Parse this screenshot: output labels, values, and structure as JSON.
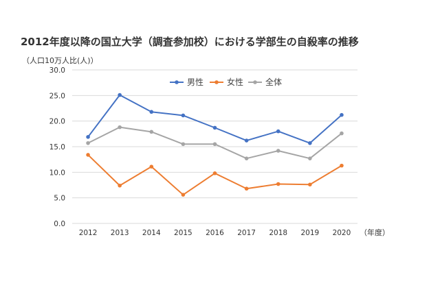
{
  "chart_data": {
    "type": "line",
    "title": "2012年度以降の国立大学（調査参加校）における学部生の自殺率の推移",
    "ylabel": "（人口10万人比(人)）",
    "xlabel": "（年度）",
    "ylim": [
      0,
      30
    ],
    "yticks": [
      "0.0",
      "5.0",
      "10.0",
      "15.0",
      "20.0",
      "25.0",
      "30.0"
    ],
    "x": [
      "2012",
      "2013",
      "2014",
      "2015",
      "2016",
      "2017",
      "2018",
      "2019",
      "2020"
    ],
    "grid": true,
    "legend_position": "top",
    "series": [
      {
        "name": "男性",
        "color": "#4472c4",
        "values": [
          16.9,
          25.1,
          21.8,
          21.1,
          18.7,
          16.2,
          18.0,
          15.7,
          21.2
        ]
      },
      {
        "name": "女性",
        "color": "#ed7d31",
        "values": [
          13.4,
          7.4,
          11.1,
          5.6,
          9.8,
          6.8,
          7.7,
          7.6,
          11.3
        ]
      },
      {
        "name": "全体",
        "color": "#a5a5a5",
        "values": [
          15.7,
          18.8,
          17.9,
          15.5,
          15.5,
          12.7,
          14.2,
          12.7,
          17.6
        ]
      }
    ]
  }
}
